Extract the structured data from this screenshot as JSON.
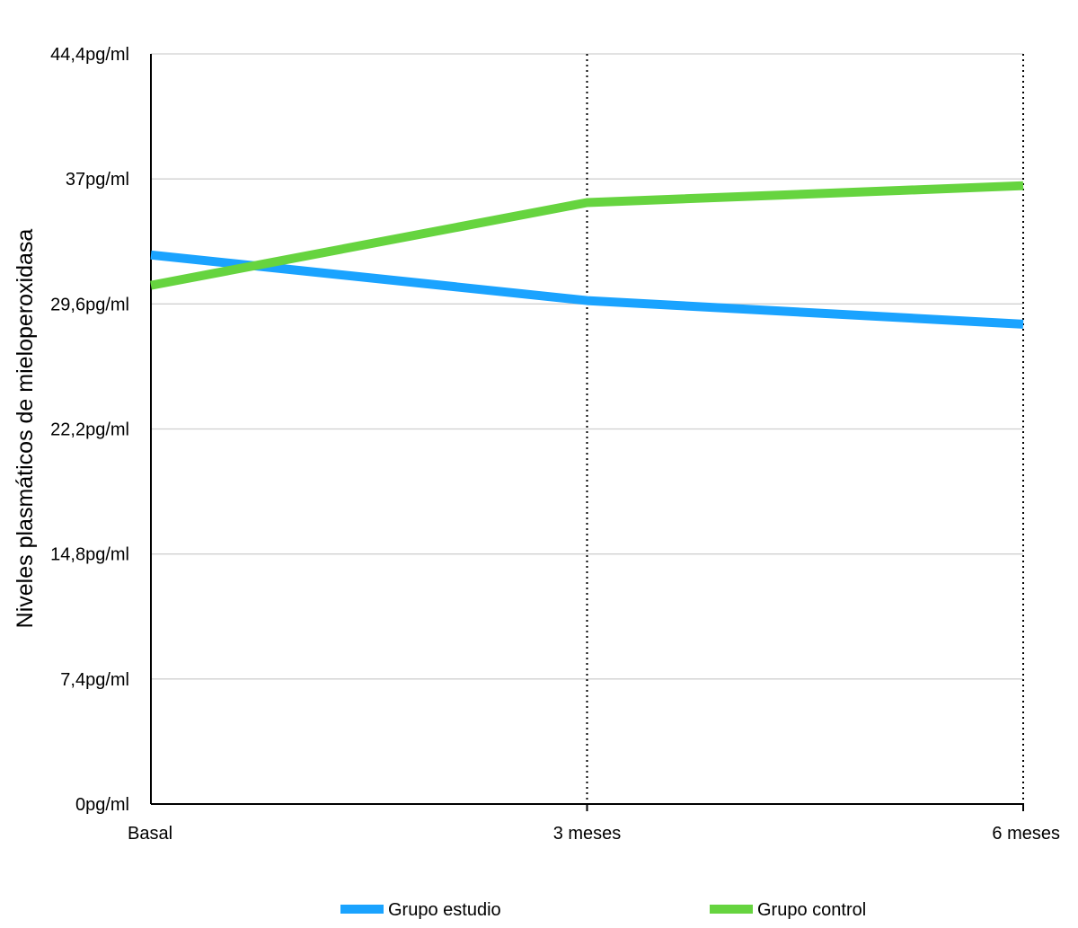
{
  "chart_data": {
    "type": "line",
    "title": "",
    "xlabel": "",
    "ylabel": "Niveles plasmáticos de mieloperoxidasa",
    "categories": [
      "Basal",
      "3 meses",
      "6 meses"
    ],
    "y_ticks": [
      "0pg/ml",
      "7,4pg/ml",
      "14,8pg/ml",
      "22,2pg/ml",
      "29,6pg/ml",
      "37pg/ml",
      "44,4pg/ml"
    ],
    "y_tick_values": [
      0,
      7.4,
      14.8,
      22.2,
      29.6,
      37,
      44.4
    ],
    "ylim": [
      0,
      44.4
    ],
    "grid": true,
    "legend_position": "bottom",
    "series": [
      {
        "name": "Grupo estudio",
        "color": "#1aa3ff",
        "values": [
          32.5,
          29.8,
          28.4
        ]
      },
      {
        "name": "Grupo control",
        "color": "#66d43f",
        "values": [
          30.7,
          35.6,
          36.6
        ]
      }
    ]
  }
}
